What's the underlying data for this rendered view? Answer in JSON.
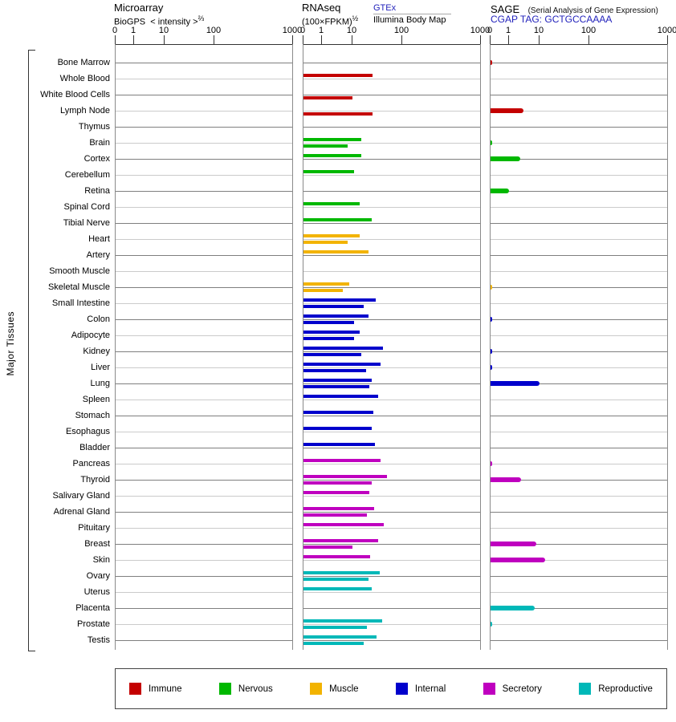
{
  "sidebar_label": "Major Tissues",
  "panels": {
    "microarray": {
      "title": "Microarray",
      "source": "BioGPS",
      "scale_label": "< intensity >",
      "scale_exponent": "⅔",
      "axis_ticks": [
        "0",
        "1",
        "10",
        "100",
        "1000"
      ]
    },
    "rnaseq": {
      "title": "RNAseq",
      "scale_label": "(100×FPKM)",
      "scale_exponent": "½",
      "link_gtex": "GTEx",
      "link_illumina": "Illumina Body Map",
      "axis_ticks": [
        "0",
        "1",
        "10",
        "100",
        "1000"
      ]
    },
    "sage": {
      "title": "SAGE",
      "subtitle": "(Serial Analysis of Gene Expression)",
      "tag_line": "CGAP TAG: GCTGCCAAAA",
      "axis_ticks": [
        "0",
        "1",
        "10",
        "100",
        "1000"
      ]
    }
  },
  "legend": [
    {
      "id": "immune",
      "label": "Immune",
      "color": "#c40000"
    },
    {
      "id": "nervous",
      "label": "Nervous",
      "color": "#00b800"
    },
    {
      "id": "muscle",
      "label": "Muscle",
      "color": "#f2b300"
    },
    {
      "id": "internal",
      "label": "Internal",
      "color": "#0000cc"
    },
    {
      "id": "secretory",
      "label": "Secretory",
      "color": "#bf00bf"
    },
    {
      "id": "reproductive",
      "label": "Reproductive",
      "color": "#00b8b8"
    }
  ],
  "chart_data": {
    "type": "bar",
    "orientation": "horizontal",
    "scale_note": "shared non-linear axis per panel, ticks at 0/1/10/100/1000",
    "axis_tick_values": [
      0,
      1,
      10,
      100,
      1000
    ],
    "tissues": [
      {
        "name": "Bone Marrow",
        "group": "immune"
      },
      {
        "name": "Whole Blood",
        "group": "immune"
      },
      {
        "name": "White Blood Cells",
        "group": "immune"
      },
      {
        "name": "Lymph Node",
        "group": "immune"
      },
      {
        "name": "Thymus",
        "group": "immune"
      },
      {
        "name": "Brain",
        "group": "nervous"
      },
      {
        "name": "Cortex",
        "group": "nervous"
      },
      {
        "name": "Cerebellum",
        "group": "nervous"
      },
      {
        "name": "Retina",
        "group": "nervous"
      },
      {
        "name": "Spinal Cord",
        "group": "nervous"
      },
      {
        "name": "Tibial Nerve",
        "group": "nervous"
      },
      {
        "name": "Heart",
        "group": "muscle"
      },
      {
        "name": "Artery",
        "group": "muscle"
      },
      {
        "name": "Smooth Muscle",
        "group": "muscle"
      },
      {
        "name": "Skeletal Muscle",
        "group": "muscle"
      },
      {
        "name": "Small Intestine",
        "group": "internal"
      },
      {
        "name": "Colon",
        "group": "internal"
      },
      {
        "name": "Adipocyte",
        "group": "internal"
      },
      {
        "name": "Kidney",
        "group": "internal"
      },
      {
        "name": "Liver",
        "group": "internal"
      },
      {
        "name": "Lung",
        "group": "internal"
      },
      {
        "name": "Spleen",
        "group": "internal"
      },
      {
        "name": "Stomach",
        "group": "internal"
      },
      {
        "name": "Esophagus",
        "group": "internal"
      },
      {
        "name": "Bladder",
        "group": "internal"
      },
      {
        "name": "Pancreas",
        "group": "secretory"
      },
      {
        "name": "Thyroid",
        "group": "secretory"
      },
      {
        "name": "Salivary Gland",
        "group": "secretory"
      },
      {
        "name": "Adrenal Gland",
        "group": "secretory"
      },
      {
        "name": "Pituitary",
        "group": "secretory"
      },
      {
        "name": "Breast",
        "group": "secretory"
      },
      {
        "name": "Skin",
        "group": "secretory"
      },
      {
        "name": "Ovary",
        "group": "reproductive"
      },
      {
        "name": "Uterus",
        "group": "reproductive"
      },
      {
        "name": "Placenta",
        "group": "reproductive"
      },
      {
        "name": "Prostate",
        "group": "reproductive"
      },
      {
        "name": "Testis",
        "group": "reproductive"
      }
    ],
    "series": [
      {
        "id": "microarray_biogps",
        "name": "Microarray BioGPS intensity",
        "values": [
          null,
          null,
          null,
          null,
          null,
          null,
          null,
          null,
          null,
          null,
          null,
          null,
          null,
          null,
          null,
          null,
          null,
          null,
          null,
          null,
          null,
          null,
          null,
          null,
          null,
          null,
          null,
          null,
          null,
          null,
          null,
          null,
          null,
          null,
          null,
          null,
          null
        ]
      },
      {
        "id": "rnaseq_gtex",
        "name": "RNAseq GTEx (100×FPKM)^1/2",
        "values": [
          null,
          26,
          null,
          null,
          null,
          15,
          15,
          11,
          null,
          14,
          25,
          14,
          21,
          null,
          8,
          30,
          21,
          14,
          42,
          37,
          25,
          33,
          27,
          25,
          29,
          37,
          50,
          22,
          28,
          43,
          33,
          23,
          36,
          25,
          null,
          40,
          31
        ]
      },
      {
        "id": "rnaseq_illumina",
        "name": "RNAseq Illumina Body Map (100×FPKM)^1/2",
        "values": [
          null,
          null,
          10,
          26,
          null,
          7,
          null,
          null,
          null,
          null,
          null,
          7,
          null,
          null,
          5,
          17,
          11,
          11,
          15,
          19,
          22,
          null,
          null,
          null,
          null,
          null,
          25,
          null,
          20,
          null,
          10,
          null,
          21,
          null,
          null,
          20,
          17
        ]
      },
      {
        "id": "sage_cgap",
        "name": "SAGE CGAP tag GCTGCCAAAA",
        "values": [
          0.1,
          null,
          null,
          3,
          null,
          0.1,
          2.3,
          null,
          1,
          null,
          null,
          null,
          null,
          null,
          0.1,
          null,
          0.1,
          null,
          0.1,
          0.1,
          10,
          null,
          null,
          null,
          null,
          0.1,
          2.5,
          null,
          null,
          null,
          8,
          13,
          null,
          null,
          7,
          0.1,
          null
        ]
      }
    ]
  }
}
